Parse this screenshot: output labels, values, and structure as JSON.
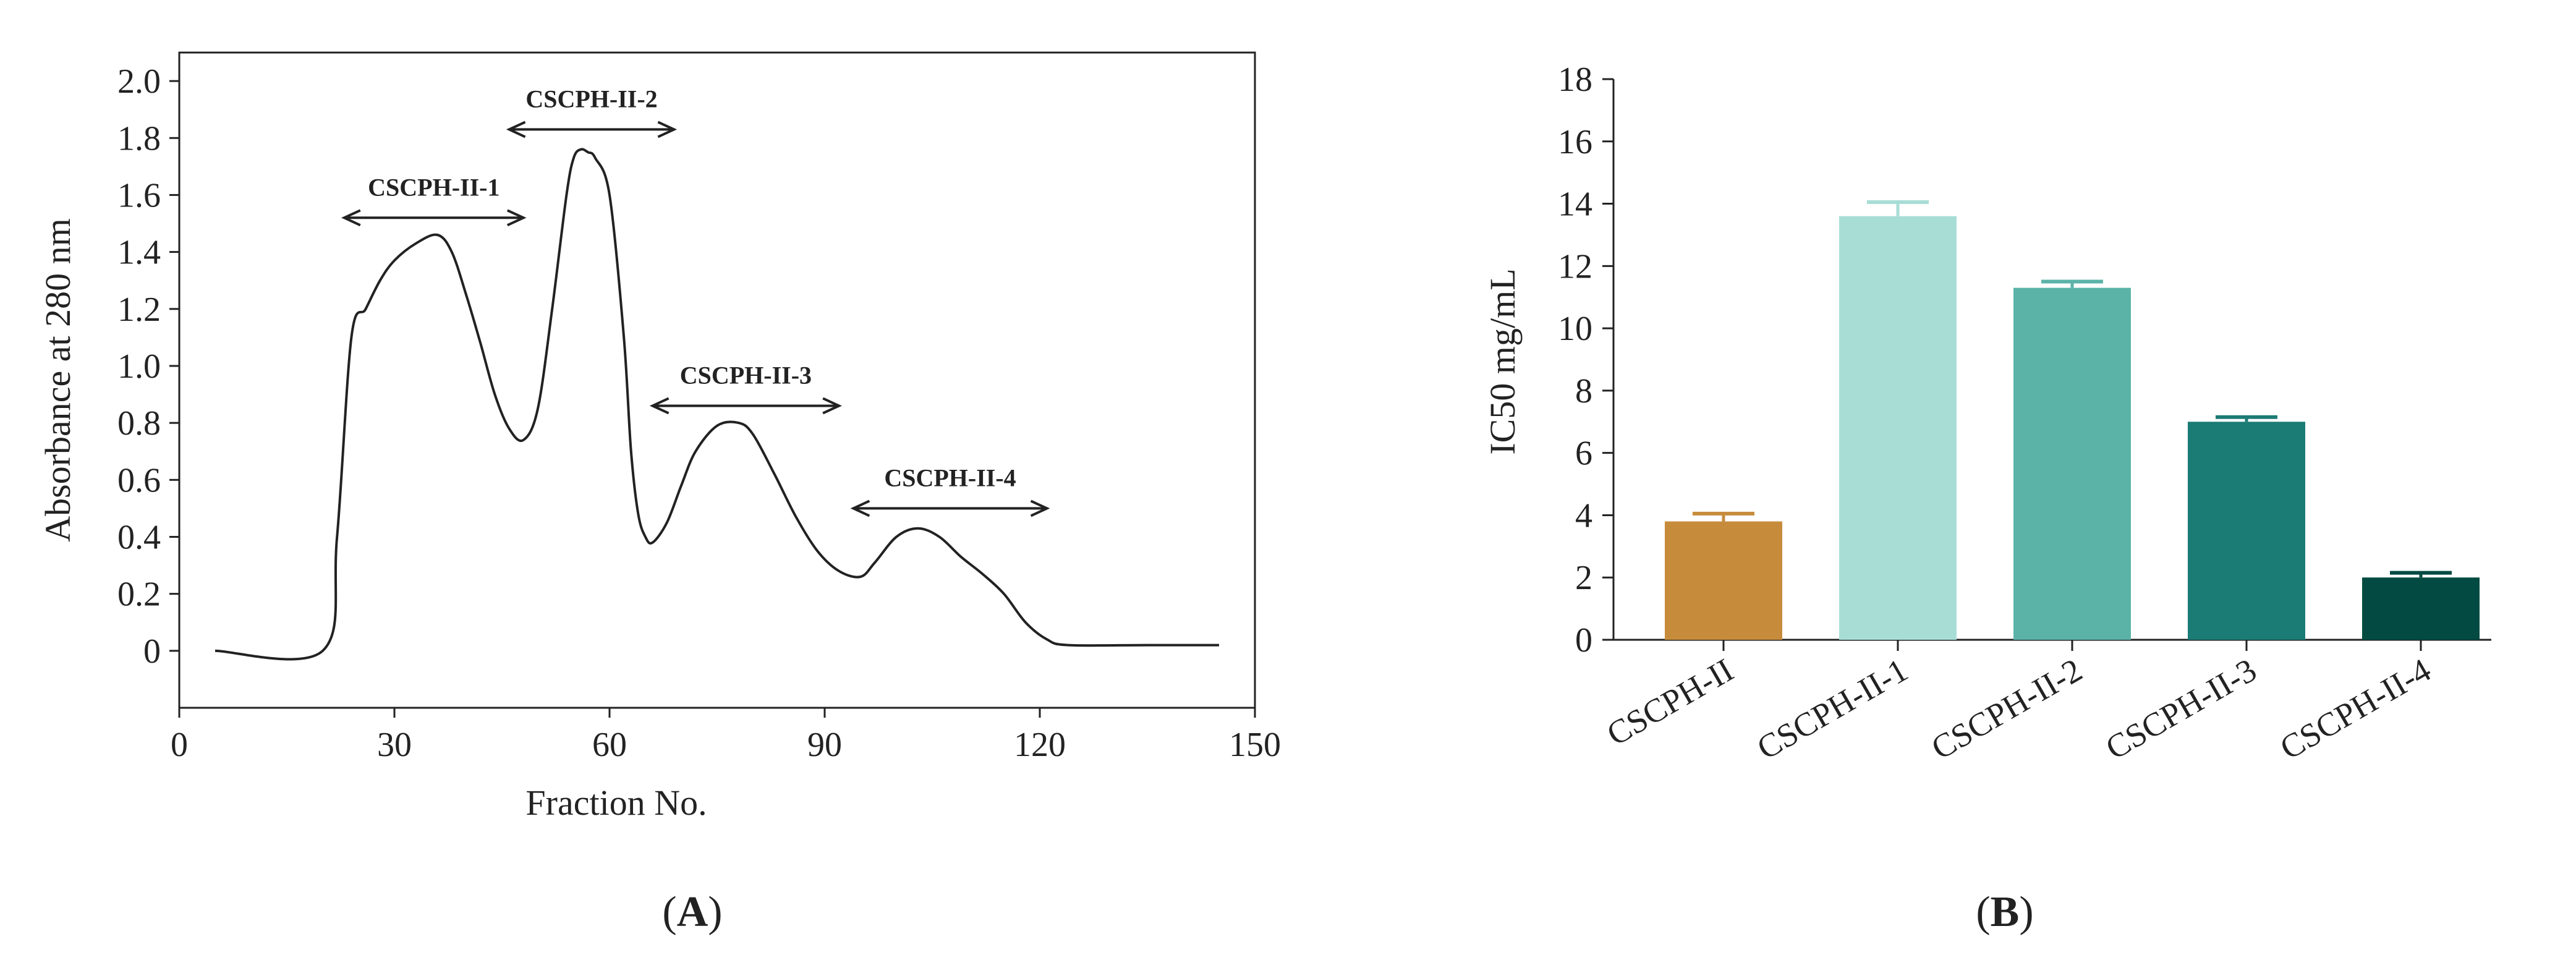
{
  "chart_data": [
    {
      "panel": "(A)",
      "type": "line",
      "xlabel": "Fraction No.",
      "ylabel": "Absorbance at 280 nm",
      "xlim": [
        0,
        150
      ],
      "ylim": [
        -0.2,
        2.1
      ],
      "xticks": [
        "0",
        "30",
        "60",
        "90",
        "120",
        "150"
      ],
      "yticks": [
        "0",
        "0.2",
        "0.4",
        "0.6",
        "0.8",
        "1.0",
        "1.2",
        "1.4",
        "1.6",
        "1.8",
        "2.0"
      ],
      "series": [
        {
          "x": [
            5,
            20,
            22,
            24,
            26,
            28,
            30,
            33,
            36,
            38,
            40,
            42,
            44,
            46,
            48,
            50,
            52,
            54,
            55,
            56,
            57,
            58,
            60,
            62,
            63,
            64,
            65,
            66,
            68,
            70,
            72,
            75,
            78,
            80,
            83,
            86,
            89,
            92,
            95,
            97,
            100,
            103,
            106,
            109,
            112,
            115,
            118,
            121,
            124,
            135,
            145
          ],
          "y": [
            0,
            0,
            0.4,
            1.1,
            1.2,
            1.3,
            1.37,
            1.43,
            1.46,
            1.4,
            1.25,
            1.08,
            0.9,
            0.78,
            0.74,
            0.85,
            1.2,
            1.6,
            1.73,
            1.76,
            1.75,
            1.73,
            1.6,
            1.1,
            0.7,
            0.48,
            0.4,
            0.38,
            0.45,
            0.58,
            0.7,
            0.79,
            0.8,
            0.76,
            0.62,
            0.47,
            0.35,
            0.28,
            0.26,
            0.31,
            0.4,
            0.43,
            0.4,
            0.33,
            0.27,
            0.2,
            0.1,
            0.04,
            0.02,
            0.02,
            0.02
          ]
        }
      ],
      "annotations": [
        {
          "text": "CSCPH-II-1",
          "x_from": 23,
          "x_to": 48,
          "y": 1.52
        },
        {
          "text": "CSCPH-II-2",
          "x_from": 46,
          "x_to": 69,
          "y": 1.83
        },
        {
          "text": "CSCPH-II-3",
          "x_from": 66,
          "x_to": 92,
          "y": 0.86
        },
        {
          "text": "CSCPH-II-4",
          "x_from": 94,
          "x_to": 121,
          "y": 0.5
        }
      ],
      "grid": false
    },
    {
      "panel": "(B)",
      "type": "bar",
      "categories": [
        "CSCPH-II",
        "CSCPH-II-1",
        "CSCPH-II-2",
        "CSCPH-II-3",
        "CSCPH-II-4"
      ],
      "values": [
        3.8,
        13.6,
        11.3,
        7.0,
        2.0
      ],
      "errors": [
        0.25,
        0.45,
        0.2,
        0.15,
        0.15
      ],
      "colors": [
        "#C68C3C",
        "#A8DDD6",
        "#5BB3A8",
        "#1B7B75",
        "#024A42"
      ],
      "ylabel": "IC50 mg/mL",
      "ylim": [
        0,
        18
      ],
      "yticks": [
        "0",
        "2",
        "4",
        "6",
        "8",
        "10",
        "12",
        "14",
        "16",
        "18"
      ],
      "grid": false
    }
  ]
}
